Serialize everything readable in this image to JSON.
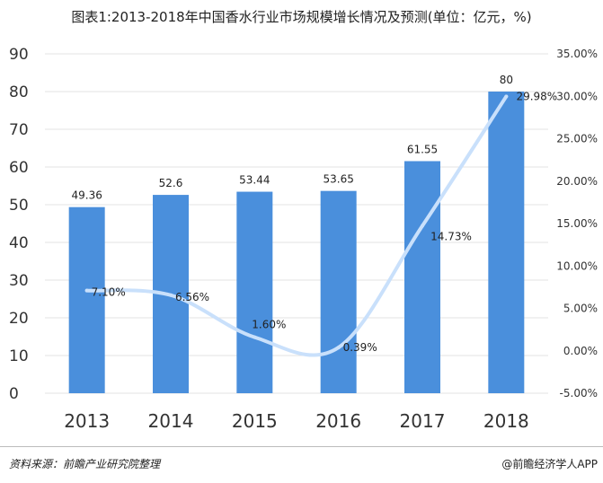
{
  "chart_data": {
    "type": "bar",
    "title": "图表1:2013-2018年中国香水行业市场规模增长情况及预测(单位：亿元，%)",
    "categories": [
      "2013",
      "2014",
      "2015",
      "2016",
      "2017",
      "2018"
    ],
    "series": [
      {
        "values": [
          49.36,
          52.6,
          53.44,
          53.65,
          61.55,
          80
        ],
        "type": "bar",
        "axis": "left",
        "color": "#4a8fdc"
      },
      {
        "values": [
          7.1,
          6.56,
          1.6,
          0.39,
          14.73,
          29.98
        ],
        "type": "line",
        "axis": "right",
        "color": "#c9e0fb"
      }
    ],
    "bar_labels": [
      "49.36",
      "52.6",
      "53.44",
      "53.65",
      "61.55",
      "80"
    ],
    "line_labels": [
      "7.10%",
      "6.56%",
      "1.60%",
      "0.39%",
      "14.73%",
      "29.98%"
    ],
    "ylim": [
      0,
      90
    ],
    "y_ticks": [
      "0",
      "10",
      "20",
      "30",
      "40",
      "50",
      "60",
      "70",
      "80",
      "90"
    ],
    "y2lim": [
      -5,
      35
    ],
    "y2_ticks": [
      "-5.00%",
      "0.00%",
      "5.00%",
      "10.00%",
      "15.00%",
      "20.00%",
      "25.00%",
      "30.00%",
      "35.00%"
    ],
    "grid": true
  },
  "footer": {
    "source": "资料来源：前瞻产业研究院整理",
    "brand": "@前瞻经济学人APP"
  }
}
